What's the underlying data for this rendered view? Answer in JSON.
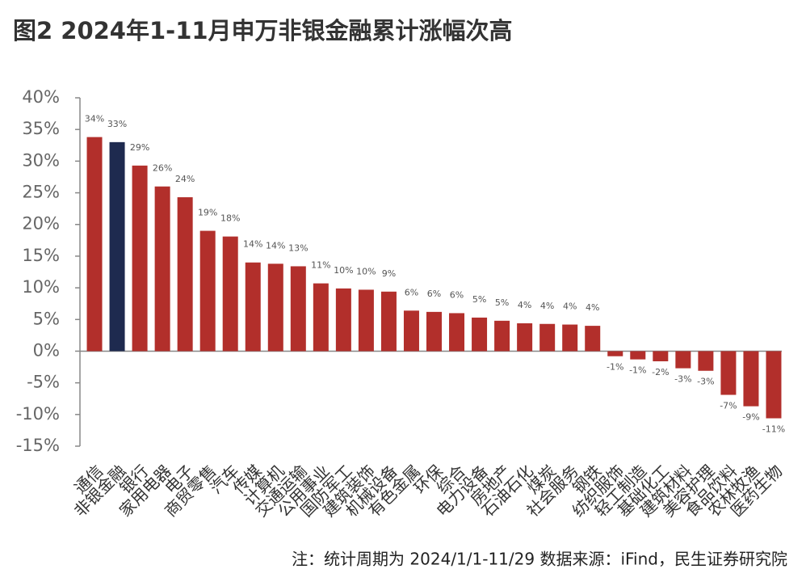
{
  "chart_data": {
    "type": "bar",
    "title": "图2  2024年1-11月申万非银金融累计涨幅次高",
    "note": "注：统计周期为 2024/1/1-11/29    数据来源：iFind，民生证券研究院",
    "categories": [
      "通信",
      "非银金融",
      "银行",
      "家用电器",
      "电子",
      "商贸零售",
      "汽车",
      "传媒",
      "计算机",
      "交通运输",
      "公用事业",
      "国防军工",
      "建筑装饰",
      "机械设备",
      "有色金属",
      "环保",
      "综合",
      "电力设备",
      "房地产",
      "石油石化",
      "煤炭",
      "社会服务",
      "钢铁",
      "纺织服饰",
      "轻工制造",
      "基础化工",
      "建筑材料",
      "美容护理",
      "食品饮料",
      "农林牧渔",
      "医药生物"
    ],
    "values": [
      33.8,
      33.0,
      29.3,
      26.0,
      24.3,
      19.0,
      18.1,
      14.0,
      13.8,
      13.4,
      10.7,
      9.9,
      9.7,
      9.4,
      6.4,
      6.2,
      6.0,
      5.3,
      4.8,
      4.4,
      4.3,
      4.2,
      4.0,
      -0.8,
      -1.3,
      -1.6,
      -2.7,
      -3.1,
      -6.9,
      -8.7,
      -10.6
    ],
    "value_labels": [
      "34%",
      "33%",
      "29%",
      "26%",
      "24%",
      "19%",
      "18%",
      "14%",
      "14%",
      "13%",
      "11%",
      "10%",
      "10%",
      "9%",
      "6%",
      "6%",
      "6%",
      "5%",
      "5%",
      "4%",
      "4%",
      "4%",
      "4%",
      "-1%",
      "-1%",
      "-2%",
      "-3%",
      "-3%",
      "-7%",
      "-9%",
      "-11%"
    ],
    "color": "#b22f2b",
    "highlight_color": "#1e2a4f",
    "highlight": "非银金融",
    "ylim": [
      -15,
      40
    ],
    "yticks": [
      {
        "value": -15,
        "label": "-15%"
      },
      {
        "value": -10,
        "label": "-10%"
      },
      {
        "value": -5,
        "label": "-5%"
      },
      {
        "value": 0,
        "label": "0%"
      },
      {
        "value": 5,
        "label": "5%"
      },
      {
        "value": 10,
        "label": "10%"
      },
      {
        "value": 15,
        "label": "15%"
      },
      {
        "value": 20,
        "label": "20%"
      },
      {
        "value": 25,
        "label": "25%"
      },
      {
        "value": 30,
        "label": "30%"
      },
      {
        "value": 35,
        "label": "35%"
      },
      {
        "value": 40,
        "label": "40%"
      }
    ],
    "grid": false
  }
}
